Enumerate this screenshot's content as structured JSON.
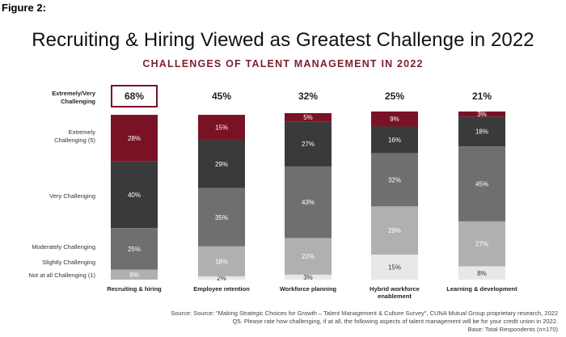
{
  "figure_label": "Figure 2:",
  "headline": "Recruiting & Hiring Viewed as Greatest Challenge in 2022",
  "source": {
    "line1": "Source: Source: \"Making Strategic Choices for Growth – Talent Management & Culture Survey\", CUNA Mutual Group proprietary research, 2022",
    "line2": "Q5. Please rate how challenging, if at all, the following aspects of talent management will be for your credit union in 2022.",
    "line3": "Base: Total Respondents (n=170)"
  },
  "colors": {
    "Extremely Challenging (5)": "#7a1226",
    "Very Challenging": "#3a3a3a",
    "Moderately Challenging": "#6f6f6f",
    "Slightly Challenging": "#b0b0b0",
    "Not at all Challenging (1)": "#e8e8e8",
    "highlight_box": "#7a1226"
  },
  "chart_data": {
    "type": "bar",
    "stacked": true,
    "title": "CHALLENGES OF TALENT MANAGEMENT IN 2022",
    "top2_label": "Extremely/Very Challenging",
    "categories": [
      "Recruiting & hiring",
      "Employee retention",
      "Workforce planning",
      "Hybrid workforce enablement",
      "Learning & development"
    ],
    "top2_values": [
      "68%",
      "45%",
      "32%",
      "25%",
      "21%"
    ],
    "series": [
      {
        "name": "Not at all Challenging (1)",
        "values": [
          0,
          2,
          3,
          15,
          8
        ]
      },
      {
        "name": "Slightly Challenging",
        "values": [
          6,
          18,
          22,
          29,
          27
        ]
      },
      {
        "name": "Moderately Challenging",
        "values": [
          25,
          35,
          43,
          32,
          45
        ]
      },
      {
        "name": "Very Challenging",
        "values": [
          40,
          29,
          27,
          16,
          18
        ]
      },
      {
        "name": "Extremely Challenging (5)",
        "values": [
          28,
          15,
          5,
          9,
          3
        ]
      }
    ],
    "ylim": [
      0,
      100
    ]
  }
}
